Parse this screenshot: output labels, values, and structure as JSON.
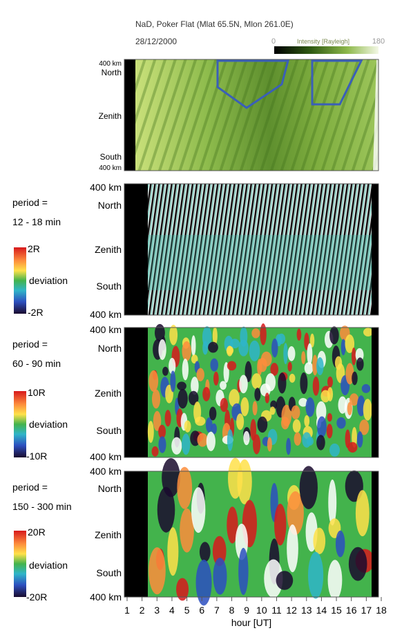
{
  "header": {
    "title": "NaD,  Poker Flat (Mlat 65.5N, Mlon 261.0E)",
    "date": "28/12/2000",
    "colorbar_label": "Intensity [Rayleigh]",
    "colorbar_min": "0",
    "colorbar_max": "180"
  },
  "colors": {
    "keogram_dark": "#2f5a12",
    "keogram_light": "#c9e07a",
    "highlight_box": "#3a5fb8"
  },
  "chart_data": [
    {
      "type": "heatmap",
      "name": "keogram",
      "title": "NaD,  Poker Flat (Mlat 65.5N, Mlon 261.0E)",
      "colorbar": {
        "label": "Intensity [Rayleigh]",
        "min": 0,
        "max": 180
      },
      "y_ticks": [
        "400 km",
        "North",
        "Zenith",
        "South",
        "400 km"
      ],
      "highlight_boxes": [
        {
          "hour_start": 7.2,
          "hour_end": 11.8
        },
        {
          "hour_start": 13.6,
          "hour_end": 16.8
        }
      ]
    },
    {
      "type": "heatmap",
      "name": "filtered-1",
      "period_label": "period =",
      "period_range": "12 - 18 min",
      "colorbar": {
        "max_label": "2R",
        "mid_label": "deviation",
        "min_label": "-2R"
      },
      "y_ticks": [
        "400 km",
        "North",
        "Zenith",
        "South",
        "400 km"
      ]
    },
    {
      "type": "heatmap",
      "name": "filtered-2",
      "period_label": "period =",
      "period_range": "60 - 90 min",
      "colorbar": {
        "max_label": "10R",
        "mid_label": "deviation",
        "min_label": "-10R"
      },
      "y_ticks": [
        "400 km",
        "North",
        "Zenith",
        "South",
        "400 km"
      ]
    },
    {
      "type": "heatmap",
      "name": "filtered-3",
      "period_label": "period =",
      "period_range": "150 - 300 min",
      "colorbar": {
        "max_label": "20R",
        "mid_label": "deviation",
        "min_label": "-20R"
      },
      "y_ticks": [
        "400 km",
        "North",
        "Zenith",
        "South",
        "400 km"
      ]
    }
  ],
  "x_axis": {
    "label": "hour [UT]",
    "ticks": [
      "1",
      "2",
      "3",
      "4",
      "5",
      "6",
      "7",
      "8",
      "9",
      "10",
      "11",
      "12",
      "13",
      "14",
      "15",
      "16",
      "17",
      "18"
    ]
  }
}
